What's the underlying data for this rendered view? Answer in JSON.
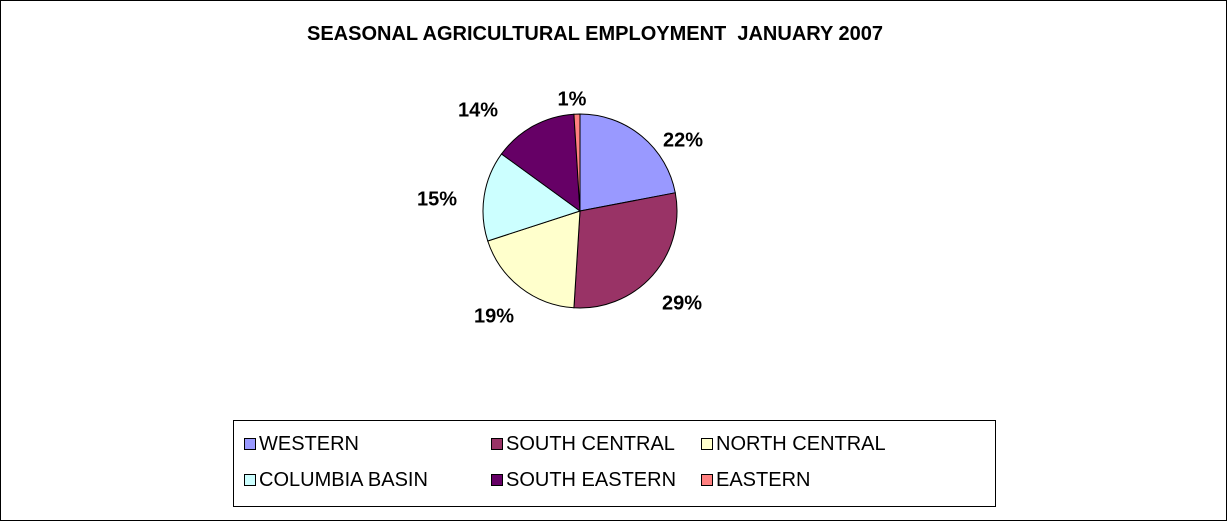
{
  "chart_data": {
    "type": "pie",
    "title": "SEASONAL AGRICULTURAL EMPLOYMENT  JANUARY 2007",
    "slices": [
      {
        "name": "WESTERN",
        "value": 22,
        "label": "22%",
        "color": "#9999FF"
      },
      {
        "name": "SOUTH CENTRAL",
        "value": 29,
        "label": "29%",
        "color": "#993366"
      },
      {
        "name": "NORTH CENTRAL",
        "value": 19,
        "label": "19%",
        "color": "#FFFFCC"
      },
      {
        "name": "COLUMBIA BASIN",
        "value": 15,
        "label": "15%",
        "color": "#CCFFFF"
      },
      {
        "name": "SOUTH EASTERN",
        "value": 14,
        "label": "14%",
        "color": "#660066"
      },
      {
        "name": "EASTERN",
        "value": 1,
        "label": "1%",
        "color": "#FF8080"
      }
    ],
    "legend_placement": "bottom"
  }
}
